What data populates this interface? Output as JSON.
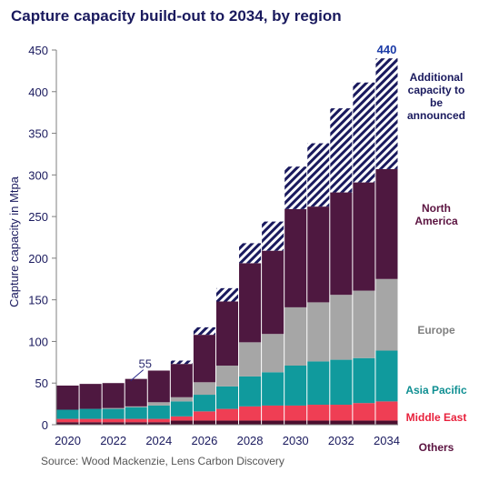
{
  "chart_data": {
    "type": "bar",
    "title": "Capture capacity build-out to 2034, by region",
    "ylabel": "Capture capacity in Mtpa",
    "xlabel": "",
    "ylim": [
      0,
      450
    ],
    "yticks": [
      0,
      50,
      100,
      150,
      200,
      250,
      300,
      350,
      400,
      450
    ],
    "x_tick_labels": [
      "2020",
      "2022",
      "2024",
      "2026",
      "2028",
      "2030",
      "2032",
      "2034"
    ],
    "categories": [
      "2020",
      "2021",
      "2022",
      "2023",
      "2024",
      "2025",
      "2026",
      "2027",
      "2028",
      "2029",
      "2030",
      "2031",
      "2032",
      "2033",
      "2034"
    ],
    "stacked": true,
    "series": [
      {
        "name": "Others",
        "color": "#4a0e2e",
        "values": [
          3,
          3,
          3,
          3,
          3,
          5,
          5,
          5,
          5,
          5,
          5,
          5,
          5,
          5,
          5
        ]
      },
      {
        "name": "Middle East",
        "color": "#ef3e54",
        "values": [
          4,
          4,
          4,
          4,
          4,
          5,
          11,
          14,
          17,
          18,
          18,
          19,
          19,
          21,
          23
        ]
      },
      {
        "name": "Asia Pacific",
        "color": "#109a9d",
        "values": [
          11,
          12,
          12,
          14,
          16,
          18,
          20,
          27,
          36,
          40,
          48,
          52,
          54,
          54,
          61
        ]
      },
      {
        "name": "Europe",
        "color": "#a6a6a6",
        "values": [
          0,
          0,
          1,
          1,
          4,
          5,
          15,
          25,
          41,
          46,
          70,
          71,
          78,
          81,
          86
        ]
      },
      {
        "name": "North America",
        "color": "#4e1840",
        "values": [
          29,
          30,
          30,
          33,
          38,
          40,
          57,
          77,
          95,
          100,
          118,
          115,
          123,
          130,
          132
        ]
      },
      {
        "name": "Additional capacity to be announced",
        "color": "#1a1a5e",
        "values": [
          0,
          0,
          0,
          0,
          0,
          4,
          9,
          16,
          24,
          35,
          51,
          76,
          101,
          120,
          133
        ]
      }
    ],
    "annotations": [
      {
        "text": "55",
        "category": "2023"
      },
      {
        "text": "440",
        "category": "2034"
      }
    ],
    "legend_position": "right",
    "grid": false
  },
  "source": "Source: Wood Mackenzie,  Lens Carbon Discovery"
}
